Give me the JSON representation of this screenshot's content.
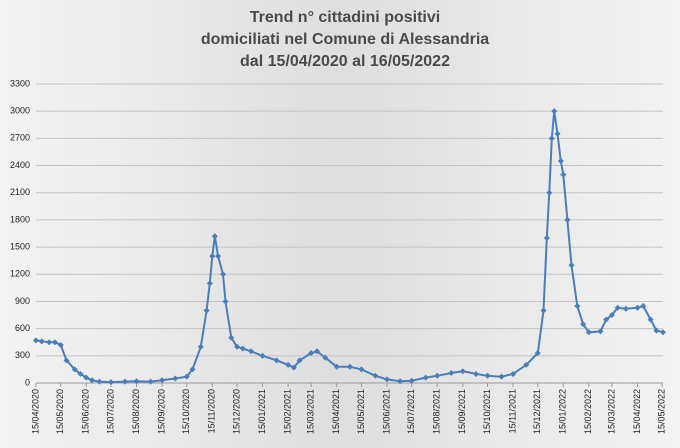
{
  "chart_data": {
    "type": "line",
    "title": [
      "Trend n° cittadini positivi",
      "domiciliati nel Comune di Alessandria",
      "dal 15/04/2020 al 16/05/2022"
    ],
    "x": [
      "15/04/2020",
      "22/04/2020",
      "01/05/2020",
      "08/05/2020",
      "15/05/2020",
      "22/05/2020",
      "01/06/2020",
      "08/06/2020",
      "15/06/2020",
      "22/06/2020",
      "01/07/2020",
      "15/07/2020",
      "01/08/2020",
      "15/08/2020",
      "01/09/2020",
      "15/09/2020",
      "01/10/2020",
      "15/10/2020",
      "22/10/2020",
      "01/11/2020",
      "08/11/2020",
      "12/11/2020",
      "15/11/2020",
      "18/11/2020",
      "22/11/2020",
      "28/11/2020",
      "01/12/2020",
      "08/12/2020",
      "15/12/2020",
      "22/12/2020",
      "01/01/2021",
      "15/01/2021",
      "01/02/2021",
      "15/02/2021",
      "22/02/2021",
      "01/03/2021",
      "15/03/2021",
      "22/03/2021",
      "01/04/2021",
      "15/04/2021",
      "01/05/2021",
      "15/05/2021",
      "01/06/2021",
      "15/06/2021",
      "01/07/2021",
      "15/07/2021",
      "01/08/2021",
      "15/08/2021",
      "01/09/2021",
      "15/09/2021",
      "01/10/2021",
      "15/10/2021",
      "01/11/2021",
      "15/11/2021",
      "01/12/2021",
      "15/12/2021",
      "22/12/2021",
      "26/12/2021",
      "29/12/2021",
      "01/01/2022",
      "04/01/2022",
      "08/01/2022",
      "12/01/2022",
      "15/01/2022",
      "20/01/2022",
      "25/01/2022",
      "01/02/2022",
      "08/02/2022",
      "15/02/2022",
      "01/03/2022",
      "08/03/2022",
      "15/03/2022",
      "22/03/2022",
      "01/04/2022",
      "15/04/2022",
      "22/04/2022",
      "01/05/2022",
      "08/05/2022",
      "16/05/2022"
    ],
    "series": [
      {
        "name": "positivi",
        "color": "#4a7ebb",
        "values": [
          470,
          460,
          450,
          450,
          420,
          250,
          150,
          100,
          60,
          30,
          15,
          10,
          15,
          20,
          15,
          30,
          50,
          70,
          150,
          400,
          800,
          1100,
          1400,
          1620,
          1400,
          1200,
          900,
          500,
          400,
          380,
          350,
          300,
          250,
          200,
          170,
          250,
          330,
          350,
          280,
          180,
          180,
          150,
          80,
          40,
          20,
          25,
          60,
          80,
          110,
          130,
          100,
          80,
          70,
          100,
          200,
          330,
          800,
          1600,
          2100,
          2700,
          3000,
          2750,
          2450,
          2300,
          1800,
          1300,
          850,
          650,
          560,
          570,
          700,
          750,
          830,
          820,
          830,
          850,
          700,
          580,
          560
        ]
      }
    ],
    "xlim": [
      "15/04/2020",
      "16/05/2022"
    ],
    "xticks": [
      "15/04/2020",
      "15/05/2020",
      "15/06/2020",
      "15/07/2020",
      "15/08/2020",
      "15/09/2020",
      "15/10/2020",
      "15/11/2020",
      "15/12/2020",
      "15/01/2021",
      "15/02/2021",
      "15/03/2021",
      "15/04/2021",
      "15/05/2021",
      "15/06/2021",
      "15/07/2021",
      "15/08/2021",
      "15/09/2021",
      "15/10/2021",
      "15/11/2021",
      "15/12/2021",
      "15/01/2022",
      "15/02/2022",
      "15/03/2022",
      "15/04/2022",
      "15/05/2022"
    ],
    "ylim": [
      0,
      3300
    ],
    "yticks": [
      0,
      300,
      600,
      900,
      1200,
      1500,
      1800,
      2100,
      2400,
      2700,
      3000,
      3300
    ],
    "grid": true
  }
}
